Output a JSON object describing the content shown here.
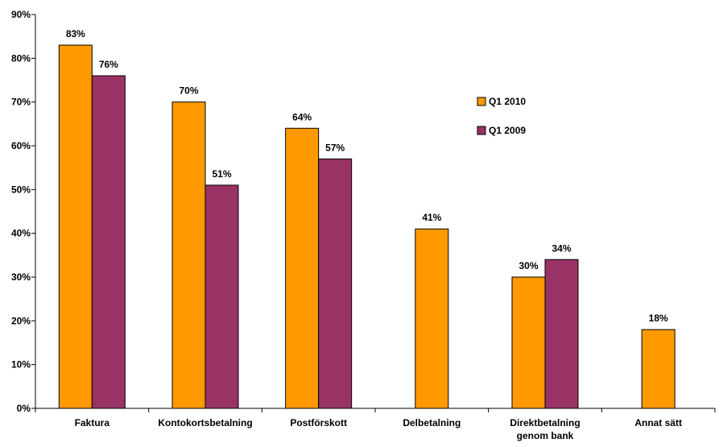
{
  "chart_data": {
    "type": "bar",
    "categories": [
      [
        "Faktura"
      ],
      [
        "Kontokortsbetalning"
      ],
      [
        "Postförskott"
      ],
      [
        "Delbetalning"
      ],
      [
        "Direktbetalning",
        "genom bank"
      ],
      [
        "Annat sätt"
      ]
    ],
    "series": [
      {
        "name": "Q1 2010",
        "color": "#FF9900",
        "values": [
          83,
          70,
          64,
          41,
          30,
          18
        ]
      },
      {
        "name": "Q1 2009",
        "color": "#993366",
        "values": [
          76,
          51,
          57,
          null,
          34,
          null
        ]
      }
    ],
    "data_labels": [
      [
        "83%",
        "70%",
        "64%",
        "41%",
        "30%",
        "18%"
      ],
      [
        "76%",
        "51%",
        "57%",
        null,
        "34%",
        null
      ]
    ],
    "y_ticks": [
      {
        "value": 0,
        "label": "0%"
      },
      {
        "value": 10,
        "label": "10%"
      },
      {
        "value": 20,
        "label": "20%"
      },
      {
        "value": 30,
        "label": "30%"
      },
      {
        "value": 40,
        "label": "40%"
      },
      {
        "value": 50,
        "label": "50%"
      },
      {
        "value": 60,
        "label": "60%"
      },
      {
        "value": 70,
        "label": "70%"
      },
      {
        "value": 80,
        "label": "80%"
      },
      {
        "value": 90,
        "label": "90%"
      }
    ],
    "ylim": [
      0,
      90
    ],
    "title": "",
    "xlabel": "",
    "ylabel": "",
    "grid": false,
    "legend_position": "right"
  }
}
